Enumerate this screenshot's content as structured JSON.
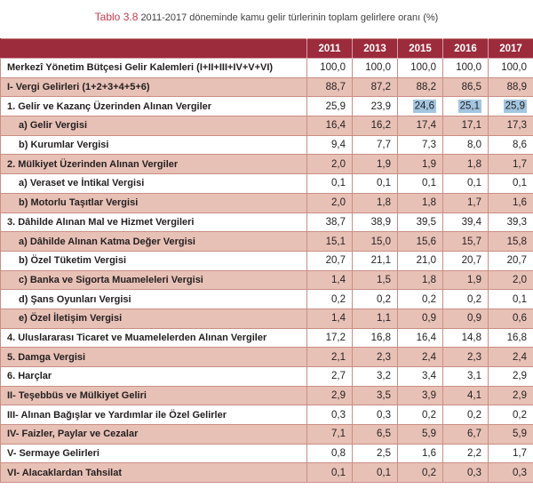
{
  "title": {
    "prefix": "Tablo 3.8",
    "text": "2011-2017 döneminde kamu gelir türlerinin toplam gelirlere oranı (%)"
  },
  "colors": {
    "header_bg": "#9c2b3c",
    "row_pink": "#e8c1b6",
    "border_pink": "#c98e83",
    "title_red": "#c23b4e",
    "text_dark": "#231f20",
    "selection_blue": "#a3c6e0"
  },
  "table": {
    "label_column_header": "",
    "years": [
      "2011",
      "2013",
      "2015",
      "2016",
      "2017"
    ],
    "rows": [
      {
        "label": "Merkezî Yönetim Bütçesi Gelir Kalemleri (I+II+III+IV+V+VI)",
        "indent": 0,
        "values": [
          "100,0",
          "100,0",
          "100,0",
          "100,0",
          "100,0"
        ]
      },
      {
        "label": "I-  Vergi Gelirleri (1+2+3+4+5+6)",
        "indent": 0,
        "values": [
          "88,7",
          "87,2",
          "88,2",
          "86,5",
          "88,9"
        ]
      },
      {
        "label": "1. Gelir ve Kazanç Üzerinden Alınan Vergiler",
        "indent": 0,
        "values": [
          "25,9",
          "23,9",
          "24,6",
          "25,1",
          "25,9"
        ],
        "highlight": [
          2,
          3,
          4
        ]
      },
      {
        "label": "a) Gelir Vergisi",
        "indent": 1,
        "values": [
          "16,4",
          "16,2",
          "17,4",
          "17,1",
          "17,3"
        ]
      },
      {
        "label": "b) Kurumlar Vergisi",
        "indent": 1,
        "values": [
          "9,4",
          "7,7",
          "7,3",
          "8,0",
          "8,6"
        ]
      },
      {
        "label": "2. Mülkiyet Üzerinden Alınan Vergiler",
        "indent": 0,
        "values": [
          "2,0",
          "1,9",
          "1,9",
          "1,8",
          "1,7"
        ]
      },
      {
        "label": "a) Veraset ve İntikal Vergisi",
        "indent": 1,
        "values": [
          "0,1",
          "0,1",
          "0,1",
          "0,1",
          "0,1"
        ]
      },
      {
        "label": "b) Motorlu Taşıtlar Vergisi",
        "indent": 1,
        "values": [
          "2,0",
          "1,8",
          "1,8",
          "1,7",
          "1,6"
        ]
      },
      {
        "label": "3. Dâhilde Alınan Mal ve Hizmet Vergileri",
        "indent": 0,
        "values": [
          "38,7",
          "38,9",
          "39,5",
          "39,4",
          "39,3"
        ]
      },
      {
        "label": "a) Dâhilde Alınan Katma Değer Vergisi",
        "indent": 1,
        "values": [
          "15,1",
          "15,0",
          "15,6",
          "15,7",
          "15,8"
        ]
      },
      {
        "label": "b) Özel Tüketim Vergisi",
        "indent": 1,
        "values": [
          "20,7",
          "21,1",
          "21,0",
          "20,7",
          "20,7"
        ]
      },
      {
        "label": "c) Banka ve Sigorta Muameleleri Vergisi",
        "indent": 1,
        "values": [
          "1,4",
          "1,5",
          "1,8",
          "1,9",
          "2,0"
        ]
      },
      {
        "label": "d) Şans Oyunları Vergisi",
        "indent": 1,
        "values": [
          "0,2",
          "0,2",
          "0,2",
          "0,2",
          "0,1"
        ]
      },
      {
        "label": "e) Özel İletişim Vergisi",
        "indent": 1,
        "values": [
          "1,4",
          "1,1",
          "0,9",
          "0,9",
          "0,6"
        ]
      },
      {
        "label": "4. Uluslararası Ticaret ve Muamelelerden Alınan Vergiler",
        "indent": 0,
        "values": [
          "17,2",
          "16,8",
          "16,4",
          "14,8",
          "16,8"
        ]
      },
      {
        "label": "5. Damga Vergisi",
        "indent": 0,
        "values": [
          "2,1",
          "2,3",
          "2,4",
          "2,3",
          "2,4"
        ]
      },
      {
        "label": "6. Harçlar",
        "indent": 0,
        "values": [
          "2,7",
          "3,2",
          "3,4",
          "3,1",
          "2,9"
        ]
      },
      {
        "label": "II- Teşebbüs ve Mülkiyet Geliri",
        "indent": 0,
        "values": [
          "2,9",
          "3,5",
          "3,9",
          "4,1",
          "2,9"
        ]
      },
      {
        "label": "III- Alınan Bağışlar ve Yardımlar ile Özel Gelirler",
        "indent": 0,
        "values": [
          "0,3",
          "0,3",
          "0,2",
          "0,2",
          "0,2"
        ]
      },
      {
        "label": "IV- Faizler, Paylar ve Cezalar",
        "indent": 0,
        "values": [
          "7,1",
          "6,5",
          "5,9",
          "6,7",
          "5,9"
        ]
      },
      {
        "label": "V- Sermaye Gelirleri",
        "indent": 0,
        "values": [
          "0,8",
          "2,5",
          "1,6",
          "2,2",
          "1,7"
        ]
      },
      {
        "label": "VI- Alacaklardan Tahsilat",
        "indent": 0,
        "values": [
          "0,1",
          "0,1",
          "0,2",
          "0,3",
          "0,3"
        ]
      }
    ]
  }
}
